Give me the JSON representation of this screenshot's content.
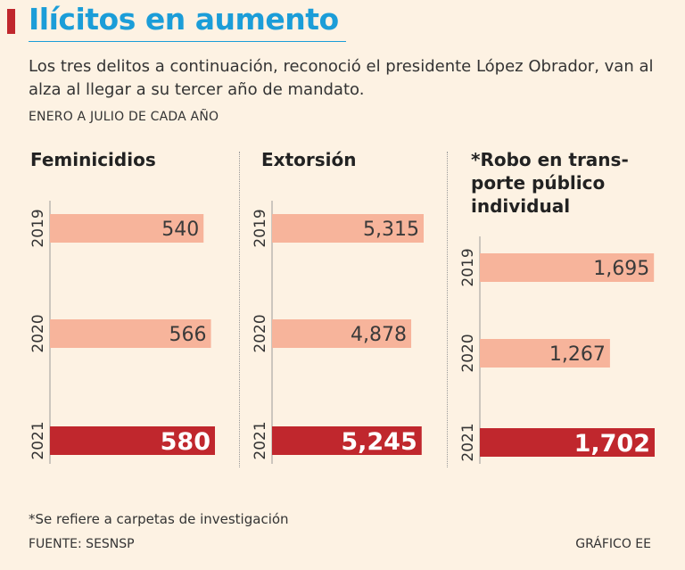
{
  "header": {
    "title": "Ilícitos en aumento",
    "subtitle": "Los tres delitos a continuación, reconoció el presidente López Obrador, van al alza al llegar a su tercer año de mandato.",
    "period": "ENERO A JULIO DE CADA AÑO"
  },
  "colors": {
    "title": "#1b9dd8",
    "accent": "#c0272d",
    "bar_light": "#f7b49b",
    "bar_highlight": "#c0272d",
    "background": "#fdf2e3"
  },
  "chart_data": [
    {
      "type": "bar",
      "orientation": "horizontal",
      "title": "Feminicidios",
      "categories": [
        "2019",
        "2020",
        "2021"
      ],
      "values": [
        540,
        566,
        580
      ],
      "value_labels": [
        "540",
        "566",
        "580"
      ],
      "highlight": "2021"
    },
    {
      "type": "bar",
      "orientation": "horizontal",
      "title": "Extorsión",
      "categories": [
        "2019",
        "2020",
        "2021"
      ],
      "values": [
        5315,
        4878,
        5245
      ],
      "value_labels": [
        "5,315",
        "4,878",
        "5,245"
      ],
      "highlight": "2021"
    },
    {
      "type": "bar",
      "orientation": "horizontal",
      "title": "*Robo en transporte público individual",
      "title_lines": [
        "*Robo en trans-",
        "porte público",
        "individual"
      ],
      "categories": [
        "2019",
        "2020",
        "2021"
      ],
      "values": [
        1695,
        1267,
        1702
      ],
      "value_labels": [
        "1,695",
        "1,267",
        "1,702"
      ],
      "highlight": "2021"
    }
  ],
  "footer": {
    "footnote": "*Se refiere a carpetas de investigación",
    "source": "FUENTE: SESNSP",
    "credit": "GRÁFICO EE"
  }
}
